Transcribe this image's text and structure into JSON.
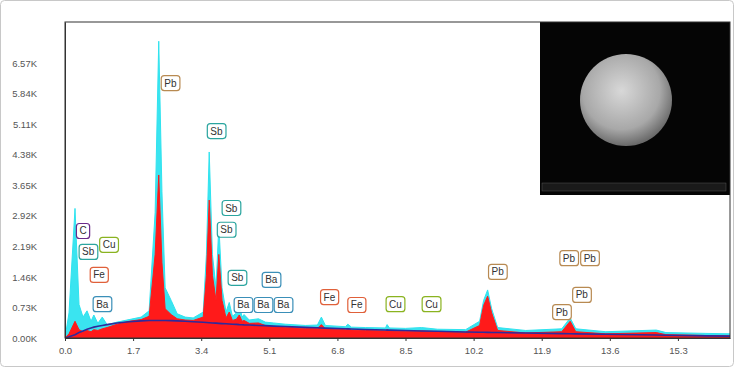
{
  "chart_data": {
    "type": "area",
    "xlim": [
      0,
      16.6
    ],
    "xticks": [
      {
        "value": 0,
        "label": "0.0"
      },
      1.7,
      3.4,
      5.1,
      6.8,
      8.5,
      10.2,
      11.9,
      13.6,
      15.3
    ],
    "ylim": [
      0,
      7560
    ],
    "yticks": [
      {
        "value": 0,
        "label": "0.00K"
      },
      {
        "value": 730,
        "label": "0.73K"
      },
      {
        "value": 1460,
        "label": "1.46K"
      },
      {
        "value": 2190,
        "label": "2.19K"
      },
      {
        "value": 2920,
        "label": "2.92K"
      },
      {
        "value": 3650,
        "label": "3.65K"
      },
      {
        "value": 4380,
        "label": "4.38K"
      },
      {
        "value": 5110,
        "label": "5.11K"
      },
      {
        "value": 5840,
        "label": "5.84K"
      },
      {
        "value": 6570,
        "label": "6.57K"
      }
    ],
    "grid": false,
    "x": [
      0,
      0.1,
      0.25,
      0.35,
      0.45,
      0.55,
      0.65,
      0.72,
      0.82,
      0.93,
      1.05,
      1.3,
      1.6,
      1.9,
      2.1,
      2.25,
      2.34,
      2.42,
      2.5,
      2.65,
      2.8,
      3.0,
      3.2,
      3.45,
      3.53,
      3.6,
      3.68,
      3.77,
      3.84,
      3.92,
      4.02,
      4.1,
      4.18,
      4.28,
      4.35,
      4.42,
      4.47,
      4.6,
      4.83,
      5.0,
      5.2,
      5.5,
      6.0,
      6.3,
      6.4,
      6.5,
      7.0,
      7.06,
      7.15,
      7.5,
      8.0,
      8.04,
      8.1,
      8.5,
      8.9,
      9.3,
      10.0,
      10.35,
      10.45,
      10.55,
      10.65,
      10.8,
      11.5,
      12.4,
      12.61,
      12.75,
      13.5,
      14.76,
      15.0,
      16.0,
      16.6
    ],
    "series": [
      {
        "type": "area",
        "color": "#2fe3ef",
        "values": [
          0,
          600,
          3100,
          800,
          500,
          650,
          400,
          550,
          350,
          500,
          320,
          380,
          440,
          500,
          650,
          3000,
          7100,
          3500,
          1200,
          900,
          580,
          500,
          480,
          620,
          2000,
          4450,
          2000,
          1200,
          2700,
          1200,
          620,
          850,
          520,
          600,
          800,
          500,
          560,
          430,
          460,
          380,
          360,
          330,
          300,
          310,
          500,
          300,
          270,
          330,
          260,
          250,
          240,
          320,
          240,
          230,
          250,
          210,
          200,
          400,
          900,
          1150,
          700,
          250,
          180,
          220,
          480,
          220,
          150,
          190,
          130,
          110,
          100
        ]
      },
      {
        "type": "area",
        "color": "#ff1a1a",
        "values": [
          0,
          100,
          400,
          200,
          150,
          180,
          150,
          200,
          180,
          220,
          250,
          330,
          400,
          440,
          520,
          2000,
          3900,
          1800,
          700,
          560,
          460,
          430,
          420,
          500,
          1500,
          3300,
          1500,
          900,
          2000,
          900,
          480,
          620,
          420,
          450,
          550,
          400,
          420,
          350,
          360,
          300,
          280,
          260,
          230,
          230,
          320,
          220,
          200,
          230,
          190,
          180,
          170,
          210,
          170,
          160,
          170,
          150,
          140,
          300,
          780,
          1000,
          600,
          180,
          120,
          150,
          400,
          150,
          100,
          130,
          80,
          60,
          50
        ]
      },
      {
        "type": "line",
        "color": "#2e2a9c",
        "values": [
          0,
          30,
          80,
          130,
          170,
          210,
          240,
          260,
          280,
          300,
          320,
          360,
          390,
          410,
          420,
          420,
          420,
          420,
          420,
          415,
          410,
          400,
          390,
          375,
          370,
          365,
          360,
          355,
          350,
          345,
          340,
          335,
          330,
          325,
          320,
          318,
          315,
          310,
          300,
          295,
          285,
          275,
          255,
          245,
          240,
          237,
          220,
          218,
          215,
          205,
          190,
          189,
          188,
          178,
          168,
          160,
          145,
          138,
          136,
          134,
          132,
          130,
          118,
          104,
          100,
          98,
          88,
          70,
          66,
          52,
          45
        ]
      }
    ],
    "annotations": [
      {
        "text": "Pb",
        "x": 2.63,
        "y": 6100,
        "color": "#b88a52"
      },
      {
        "text": "Sb",
        "x": 3.78,
        "y": 4950,
        "color": "#2aa59f"
      },
      {
        "text": "Sb",
        "x": 4.15,
        "y": 3110,
        "color": "#2aa59f"
      },
      {
        "text": "Sb",
        "x": 4.03,
        "y": 2590,
        "color": "#2aa59f"
      },
      {
        "text": "Sb",
        "x": 4.3,
        "y": 1440,
        "color": "#2aa59f"
      },
      {
        "text": "Ba",
        "x": 5.15,
        "y": 1390,
        "color": "#3a8fb8"
      },
      {
        "text": "Ba",
        "x": 4.45,
        "y": 790,
        "color": "#3a8fb8"
      },
      {
        "text": "Ba",
        "x": 4.95,
        "y": 790,
        "color": "#3a8fb8"
      },
      {
        "text": "Ba",
        "x": 5.45,
        "y": 790,
        "color": "#3a8fb8"
      },
      {
        "text": "C",
        "x": 0.45,
        "y": 2560,
        "color": "#6a2a8a"
      },
      {
        "text": "Sb",
        "x": 0.58,
        "y": 2060,
        "color": "#2aa59f"
      },
      {
        "text": "Cu",
        "x": 1.1,
        "y": 2230,
        "color": "#8ab320"
      },
      {
        "text": "Fe",
        "x": 0.85,
        "y": 1510,
        "color": "#e0603a"
      },
      {
        "text": "Ba",
        "x": 0.93,
        "y": 810,
        "color": "#3a8fb8"
      },
      {
        "text": "Fe",
        "x": 6.6,
        "y": 980,
        "color": "#e0603a"
      },
      {
        "text": "Fe",
        "x": 7.28,
        "y": 790,
        "color": "#e0603a"
      },
      {
        "text": "Cu",
        "x": 8.25,
        "y": 810,
        "color": "#8ab320"
      },
      {
        "text": "Cu",
        "x": 9.15,
        "y": 810,
        "color": "#8ab320"
      },
      {
        "text": "Pb",
        "x": 10.8,
        "y": 1580,
        "color": "#b88a52"
      },
      {
        "text": "Pb",
        "x": 12.58,
        "y": 1910,
        "color": "#b88a52"
      },
      {
        "text": "Pb",
        "x": 13.1,
        "y": 1910,
        "color": "#b88a52"
      },
      {
        "text": "Pb",
        "x": 12.9,
        "y": 1030,
        "color": "#b88a52"
      },
      {
        "text": "Pb",
        "x": 12.4,
        "y": 620,
        "color": "#b88a52"
      }
    ]
  }
}
